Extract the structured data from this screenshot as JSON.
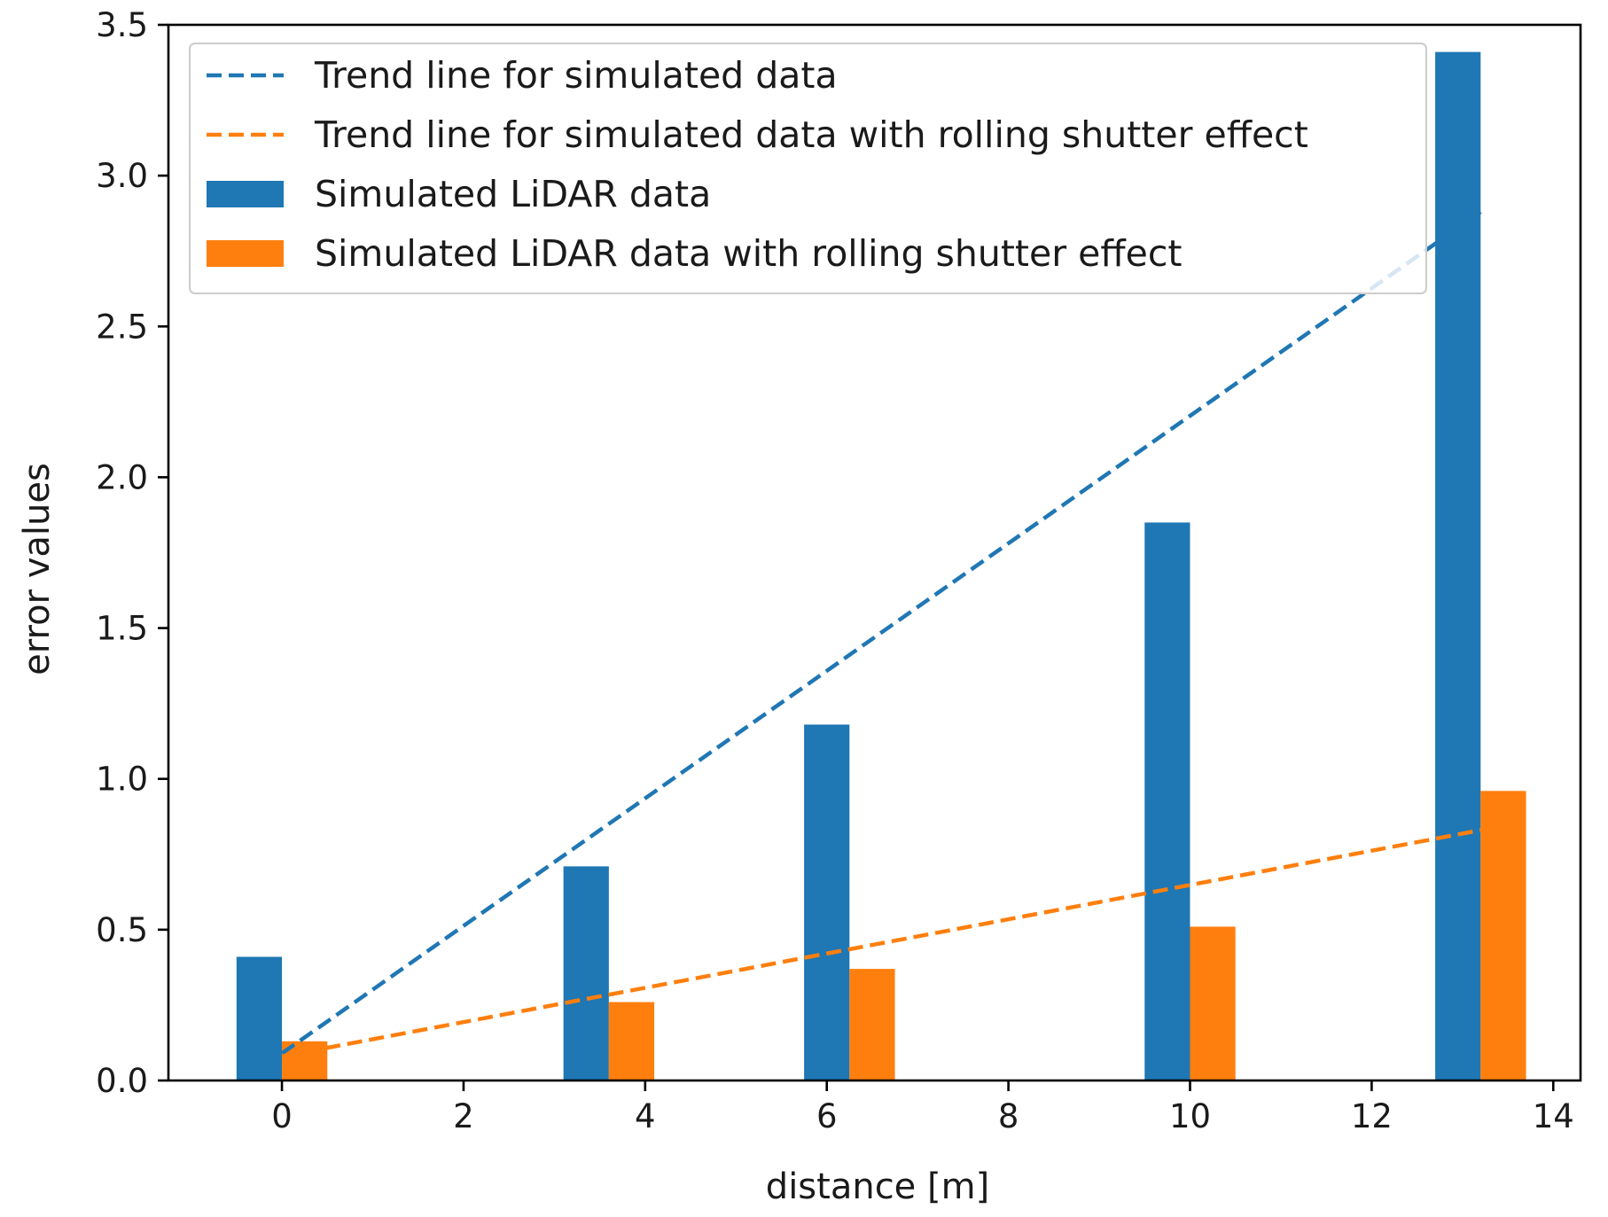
{
  "chart_data": {
    "type": "bar",
    "title": "",
    "xlabel": "distance [m]",
    "ylabel": "error values",
    "xlim": [
      -1.25,
      14.3
    ],
    "ylim": [
      0,
      3.5
    ],
    "xticks": [
      0,
      2,
      4,
      6,
      8,
      10,
      12,
      14
    ],
    "yticks": [
      0.0,
      0.5,
      1.0,
      1.5,
      2.0,
      2.5,
      3.0,
      3.5
    ],
    "xtick_labels": [
      "0",
      "2",
      "4",
      "6",
      "8",
      "10",
      "12",
      "14"
    ],
    "ytick_labels": [
      "0.0",
      "0.5",
      "1.0",
      "1.5",
      "2.0",
      "2.5",
      "3.0",
      "3.5"
    ],
    "bar_width": 0.5,
    "series": [
      {
        "name": "Simulated LiDAR data",
        "color": "#1f77b4",
        "x": [
          -0.25,
          3.35,
          6.0,
          9.75,
          12.95
        ],
        "values": [
          0.41,
          0.71,
          1.18,
          1.85,
          3.41
        ]
      },
      {
        "name": "Simulated LiDAR data with rolling shutter effect",
        "color": "#ff7f0e",
        "x": [
          0.25,
          3.85,
          6.5,
          10.25,
          13.45
        ],
        "values": [
          0.13,
          0.26,
          0.37,
          0.51,
          0.96
        ]
      }
    ],
    "trend_lines": [
      {
        "name": "Trend line for simulated data",
        "color": "#1f77b4",
        "x": [
          0,
          13.2
        ],
        "y": [
          0.09,
          2.88
        ]
      },
      {
        "name": "Trend line for simulated data with rolling shutter effect",
        "color": "#ff7f0e",
        "x": [
          0,
          13.2
        ],
        "y": [
          0.08,
          0.83
        ]
      }
    ],
    "legend": {
      "location": "upper-left",
      "entries": [
        "Trend line for simulated data",
        "Trend line for simulated data with rolling shutter effect",
        "Simulated LiDAR data",
        "Simulated LiDAR data with rolling shutter effect"
      ]
    }
  }
}
